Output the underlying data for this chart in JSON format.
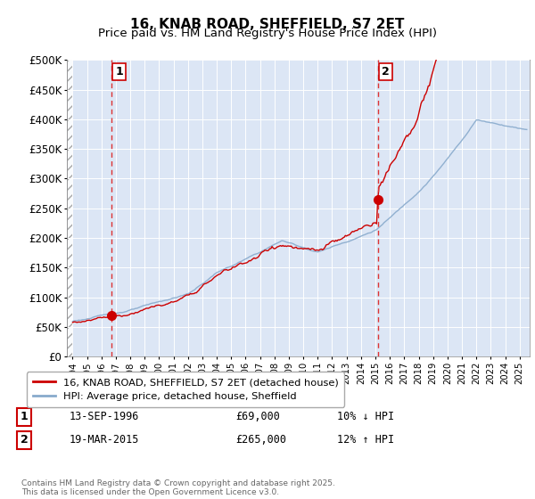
{
  "title": "16, KNAB ROAD, SHEFFIELD, S7 2ET",
  "subtitle": "Price paid vs. HM Land Registry's House Price Index (HPI)",
  "ylim": [
    0,
    500000
  ],
  "yticks": [
    0,
    50000,
    100000,
    150000,
    200000,
    250000,
    300000,
    350000,
    400000,
    450000,
    500000
  ],
  "ytick_labels": [
    "£0",
    "£50K",
    "£100K",
    "£150K",
    "£200K",
    "£250K",
    "£300K",
    "£350K",
    "£400K",
    "£450K",
    "£500K"
  ],
  "bg_color": "#dce6f5",
  "hatched_region_end": 1994.0,
  "sale1_x": 1996.71,
  "sale1_y": 69000,
  "sale1_label": "1",
  "sale2_x": 2015.21,
  "sale2_y": 265000,
  "sale2_label": "2",
  "vline1_x": 1996.71,
  "vline2_x": 2015.21,
  "legend_line1": "16, KNAB ROAD, SHEFFIELD, S7 2ET (detached house)",
  "legend_line2": "HPI: Average price, detached house, Sheffield",
  "annotation1_num": "1",
  "annotation1_date": "13-SEP-1996",
  "annotation1_price": "£69,000",
  "annotation1_hpi": "10% ↓ HPI",
  "annotation2_num": "2",
  "annotation2_date": "19-MAR-2015",
  "annotation2_price": "£265,000",
  "annotation2_hpi": "12% ↑ HPI",
  "footer": "Contains HM Land Registry data © Crown copyright and database right 2025.\nThis data is licensed under the Open Government Licence v3.0.",
  "line_color_red": "#cc0000",
  "line_color_blue": "#88aacc",
  "grid_color": "#ffffff",
  "title_fontsize": 11,
  "subtitle_fontsize": 9.5,
  "xlim_left": 1993.6,
  "xlim_right": 2025.7
}
